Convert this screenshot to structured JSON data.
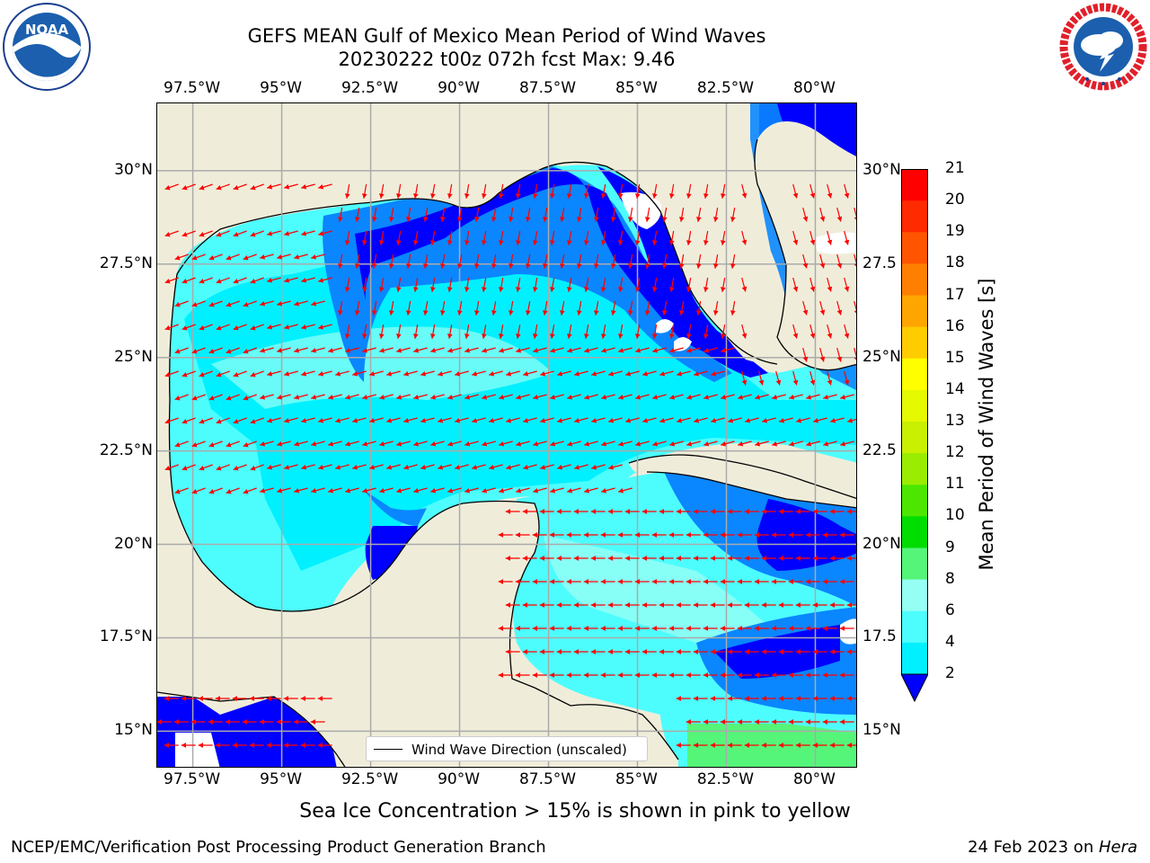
{
  "header": {
    "title_line1": "GEFS MEAN Gulf of Mexico Mean Period of Wind Waves",
    "title_line2": "20230222 t00z 072h fcst   Max: 9.46"
  },
  "logos": {
    "left": {
      "text": "NOAA",
      "ring_text": "NATIONAL OCEANIC AND ATMOSPHERIC ADMINISTRATION · U.S. DEPARTMENT OF COMMERCE"
    },
    "right": {
      "ring_text": "NATIONAL WEATHER SERVICE"
    }
  },
  "map": {
    "lon_ticks": [
      "97.5°W",
      "95°W",
      "92.5°W",
      "90°W",
      "87.5°W",
      "85°W",
      "82.5°W",
      "80°W"
    ],
    "lat_ticks_left": [
      "30°N",
      "27.5°N",
      "25°N",
      "22.5°N",
      "20°N",
      "17.5°N",
      "15°N"
    ],
    "lat_ticks_right": [
      "30°N",
      "27.5",
      "25°N",
      "22.5",
      "20°N",
      "17.5",
      "15°N"
    ],
    "legend_label": "Wind Wave Direction (unscaled)",
    "colors": {
      "land": "#efedda",
      "ocean_background": "#0a9fff",
      "vector": "#ff0000"
    }
  },
  "colorbar": {
    "label": "Mean Period of Wind Waves [s]",
    "ticks": [
      "21",
      "20",
      "19",
      "18",
      "17",
      "16",
      "15",
      "14",
      "13",
      "12",
      "11",
      "10",
      "9",
      "8",
      "6",
      "4",
      "2"
    ],
    "colors": [
      "#ff0000",
      "#ff2a00",
      "#ff5500",
      "#ff8000",
      "#ffa500",
      "#ffcc00",
      "#ffff00",
      "#e5f900",
      "#c8f000",
      "#9aed00",
      "#4ce600",
      "#00dd00",
      "#55f57a",
      "#96fff4",
      "#4dfdfd",
      "#00f0ff",
      "#0a86ff",
      "#0000ff"
    ]
  },
  "chart_data": {
    "type": "heatmap",
    "title": "GEFS MEAN Gulf of Mexico Mean Period of Wind Waves",
    "subtitle": "20230222 t00z 072h fcst   Max: 9.46",
    "xlabel": "",
    "ylabel": "",
    "xlim": [
      -98.5,
      -78.8
    ],
    "ylim": [
      14.0,
      31.8
    ],
    "x_ticks": [
      -97.5,
      -95,
      -92.5,
      -90,
      -87.5,
      -85,
      -82.5,
      -80
    ],
    "y_ticks": [
      15,
      17.5,
      20,
      22.5,
      25,
      27.5,
      30
    ],
    "colorbar_label": "Mean Period of Wind Waves [s]",
    "colorbar_levels": [
      2,
      4,
      6,
      8,
      9,
      10,
      11,
      12,
      13,
      14,
      15,
      16,
      17,
      18,
      19,
      20,
      21
    ],
    "max_value": 9.46,
    "vector_field": "Wind Wave Direction (unscaled)",
    "grid": true
  },
  "notes": {
    "sea_ice": "Sea Ice Concentration > 15% is shown in pink to yellow"
  },
  "footer": {
    "left": "NCEP/EMC/Verification Post Processing Product Generation Branch",
    "right_date": "24 Feb 2023 on ",
    "right_host": "Hera"
  }
}
